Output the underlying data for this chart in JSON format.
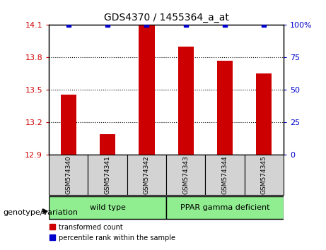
{
  "title": "GDS4370 / 1455364_a_at",
  "samples": [
    "GSM574340",
    "GSM574341",
    "GSM574342",
    "GSM574343",
    "GSM574344",
    "GSM574345"
  ],
  "red_values": [
    13.46,
    13.09,
    14.1,
    13.9,
    13.77,
    13.65
  ],
  "blue_values": [
    100,
    100,
    100,
    100,
    100,
    100
  ],
  "ylim_left": [
    12.9,
    14.1
  ],
  "ylim_right": [
    0,
    100
  ],
  "yticks_left": [
    12.9,
    13.2,
    13.5,
    13.8,
    14.1
  ],
  "yticks_right": [
    0,
    25,
    50,
    75,
    100
  ],
  "groups": [
    {
      "label": "wild type",
      "indices": [
        0,
        1,
        2
      ],
      "color": "#90EE90"
    },
    {
      "label": "PPAR gamma deficient",
      "indices": [
        3,
        4,
        5
      ],
      "color": "#90EE90"
    }
  ],
  "bar_width": 0.4,
  "red_color": "#CC0000",
  "blue_color": "#0000CC",
  "bg_color": "#D3D3D3",
  "grid_color": "black",
  "legend_red": "transformed count",
  "legend_blue": "percentile rank within the sample",
  "genotype_label": "genotype/variation",
  "left_tick_color": "#CC0000",
  "right_tick_color": "#0000CC"
}
